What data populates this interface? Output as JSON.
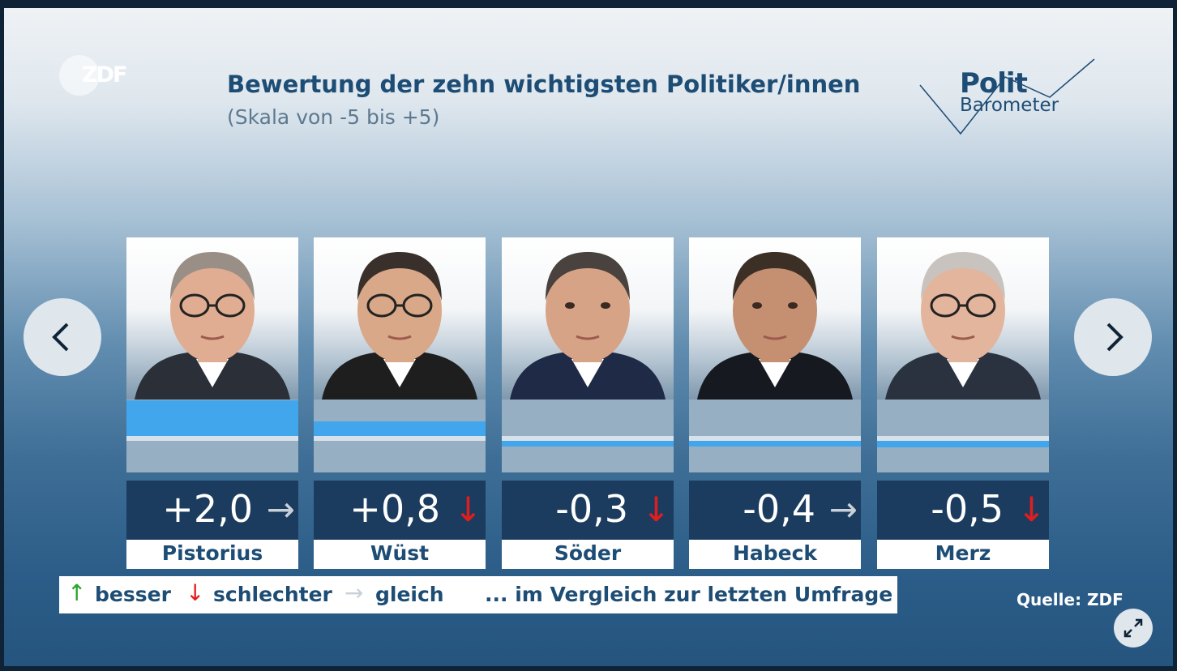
{
  "header": {
    "logo": "ZDF",
    "title": "Bewertung der zehn wichtigsten Politiker/innen",
    "subtitle": "(Skala von -5 bis +5)",
    "brand_line1": "Polit",
    "brand_line2": "Barometer"
  },
  "chart_data": {
    "type": "bar",
    "title": "Bewertung der zehn wichtigsten Politiker/innen",
    "subtitle": "(Skala von -5 bis +5)",
    "ylim": [
      -5,
      5
    ],
    "categories": [
      "Pistorius",
      "Wüst",
      "Söder",
      "Habeck",
      "Merz"
    ],
    "values": [
      2.0,
      0.8,
      -0.3,
      -0.4,
      -0.5
    ],
    "value_labels": [
      "+2,0",
      "+0,8",
      "-0,3",
      "-0,4",
      "-0,5"
    ],
    "trends": [
      "same",
      "down",
      "down",
      "same",
      "down"
    ],
    "bar_color": "#42a6ec"
  },
  "trend_arrows": {
    "up": {
      "glyph": "↑",
      "color": "#2aa52a"
    },
    "down": {
      "glyph": "↓",
      "color": "#e31d1d"
    },
    "same": {
      "glyph": "→",
      "color": "#c9d1d8"
    }
  },
  "legend": {
    "up_label": "besser",
    "down_label": "schlechter",
    "same_label": "gleich",
    "note": "... im Vergleich zur letzten Umfrage"
  },
  "source": "Quelle: ZDF",
  "controls": {
    "prev_icon": "chevron-left-icon",
    "next_icon": "chevron-right-icon",
    "expand_icon": "expand-icon"
  }
}
